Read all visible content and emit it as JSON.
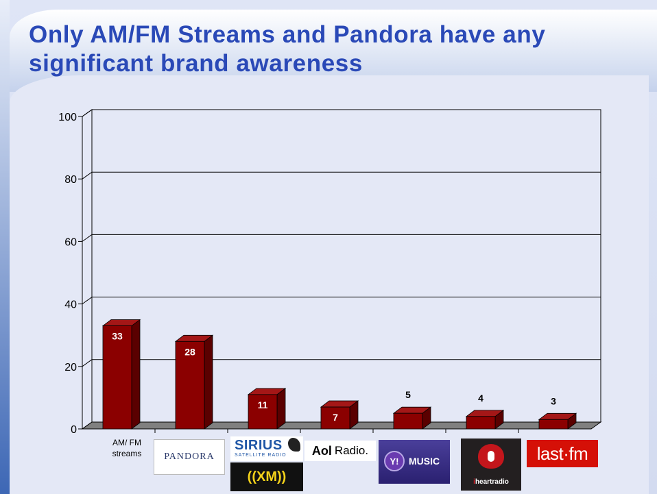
{
  "slide": {
    "title": "Only AM/FM Streams and Pandora have any significant brand awareness"
  },
  "colors": {
    "bar_front": "#8b0000",
    "bar_side": "#5a0000",
    "bar_top": "#a41717",
    "title": "#2a49b7",
    "floor": "#808080"
  },
  "chart_data": {
    "type": "bar",
    "categories": [
      "AM/ FM streams",
      "PANDORA",
      "SIRIUS XM",
      "Aol Radio.",
      "Y! MUSIC",
      "iheartradio",
      "last.fm"
    ],
    "values": [
      33,
      28,
      11,
      7,
      5,
      4,
      3
    ],
    "data_labels": [
      "33",
      "28",
      "11",
      "7",
      "5",
      "4",
      "3"
    ],
    "ylim": [
      0,
      100
    ],
    "yticks": [
      0,
      20,
      40,
      60,
      80,
      100
    ],
    "grid": true,
    "legend": "none"
  },
  "logos": {
    "am_fm_lines": [
      "AM/ FM",
      "streams"
    ],
    "pandora": "PANDORA",
    "sirius": "SIRIUS",
    "sirius_sub": "SATELLITE RADIO",
    "xm": "((XM))",
    "aol_brand": "Aol",
    "aol_word": "Radio.",
    "yahoo_y": "Y!",
    "yahoo_music": "MUSIC",
    "iheart_i": "i",
    "iheart_rest": "heartradio",
    "lastfm": "last·fm"
  }
}
